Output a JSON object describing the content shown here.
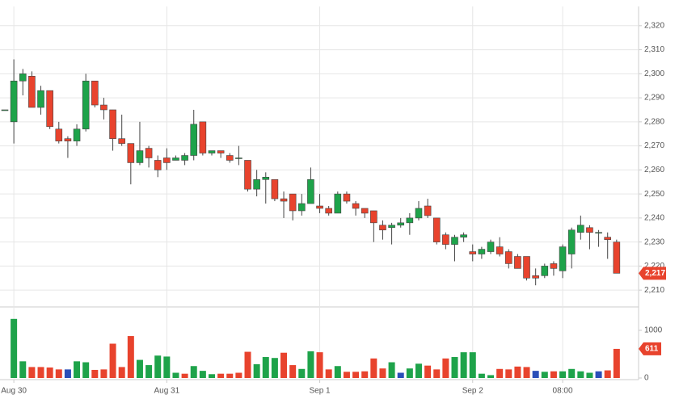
{
  "chart_data": {
    "type": "candlestick",
    "categories": [
      null,
      "Aug 30",
      null,
      null,
      null,
      null,
      null,
      null,
      null,
      null,
      null,
      null,
      null,
      null,
      null,
      null,
      null,
      null,
      "Aug 31",
      null,
      null,
      null,
      null,
      null,
      null,
      null,
      null,
      null,
      null,
      null,
      null,
      null,
      null,
      null,
      null,
      "Sep 1",
      null,
      null,
      null,
      null,
      null,
      null,
      null,
      null,
      null,
      null,
      null,
      null,
      null,
      null,
      null,
      null,
      "Sep 2",
      null,
      null,
      null,
      null,
      null,
      null,
      null,
      null,
      null,
      "08:00",
      null,
      null,
      null,
      null,
      null,
      null
    ],
    "open": [
      2285,
      2280,
      2297,
      2299,
      2286,
      2293,
      2277,
      2273,
      2272,
      2277,
      2297,
      2287,
      2285,
      2273,
      2271,
      2263,
      2269,
      2264,
      2265,
      2264,
      2264,
      2266,
      2280,
      2267,
      2268,
      2266,
      2265,
      2264,
      2252,
      2256,
      2256,
      2248,
      2250,
      2243,
      2246,
      2245,
      2244,
      2242,
      2250,
      2246,
      2244,
      2243,
      2237,
      2236,
      2237,
      2238,
      2240,
      2245,
      2240,
      2233,
      2229,
      2232,
      2226,
      2225,
      2226,
      2228,
      2226,
      2224,
      2224,
      2216,
      2216,
      2221,
      2218,
      2225,
      2234,
      2236,
      2234,
      2232,
      2230
    ],
    "high": [
      2285,
      2306,
      2302,
      2301,
      2295,
      2293,
      2280,
      2274,
      2279,
      2300,
      2297,
      2290,
      2285,
      2283,
      2271,
      2280,
      2270,
      2266,
      2269,
      2266,
      2267,
      2285,
      2280,
      2268,
      2268,
      2267,
      2270,
      2264,
      2260,
      2259,
      2256,
      2251,
      2250,
      2250,
      2261,
      2250,
      2245,
      2251,
      2251,
      2247,
      2244,
      2243,
      2239,
      2238,
      2240,
      2242,
      2247,
      2248,
      2240,
      2234,
      2233,
      2234,
      2229,
      2228,
      2231,
      2232,
      2227,
      2225,
      2224,
      2219,
      2221,
      2222,
      2229,
      2236,
      2241,
      2237,
      2235,
      2234,
      2231
    ],
    "low": [
      2285,
      2271,
      2291,
      2286,
      2283,
      2277,
      2271,
      2265,
      2270,
      2276,
      2286,
      2281,
      2268,
      2270,
      2254,
      2262,
      2261,
      2257,
      2260,
      2264,
      2262,
      2264,
      2266,
      2266,
      2265,
      2263,
      2262,
      2251,
      2249,
      2246,
      2247,
      2240,
      2239,
      2241,
      2246,
      2242,
      2241,
      2242,
      2246,
      2241,
      2240,
      2230,
      2231,
      2229,
      2236,
      2233,
      2239,
      2240,
      2229,
      2227,
      2222,
      2230,
      2222,
      2223,
      2225,
      2224,
      2219,
      2219,
      2214,
      2212,
      2215,
      2216,
      2215,
      2219,
      2231,
      2227,
      2228,
      2223,
      2217
    ],
    "close": [
      2285,
      2297,
      2300,
      2286,
      2293,
      2278,
      2272,
      2272,
      2277,
      2297,
      2287,
      2285,
      2273,
      2271,
      2263,
      2268,
      2265,
      2260,
      2263,
      2265,
      2266,
      2279,
      2267,
      2268,
      2267,
      2264,
      2265,
      2252,
      2256,
      2257,
      2248,
      2247,
      2243,
      2246,
      2256,
      2244,
      2242,
      2250,
      2247,
      2244,
      2242,
      2238,
      2235,
      2237,
      2238,
      2240,
      2244,
      2241,
      2230,
      2229,
      2232,
      2233,
      2225,
      2227,
      2230,
      2225,
      2221,
      2219,
      2215,
      2215,
      2220,
      2219,
      2228,
      2235,
      2237,
      2234,
      2234,
      2231,
      2217
    ],
    "up_color": "#1ea34a",
    "down_color": "#e8432d",
    "ylim": [
      2203,
      2328
    ],
    "yticks": [
      {
        "value": 2210,
        "label": "2,210"
      },
      {
        "value": 2220,
        "label": "2,220"
      },
      {
        "value": 2230,
        "label": "2,230"
      },
      {
        "value": 2240,
        "label": "2,240"
      },
      {
        "value": 2250,
        "label": "2,250"
      },
      {
        "value": 2260,
        "label": "2,260"
      },
      {
        "value": 2270,
        "label": "2,270"
      },
      {
        "value": 2280,
        "label": "2,280"
      },
      {
        "value": 2290,
        "label": "2,290"
      },
      {
        "value": 2300,
        "label": "2,300"
      },
      {
        "value": 2310,
        "label": "2,310"
      },
      {
        "value": 2320,
        "label": "2,320"
      }
    ],
    "last_label": "2,217",
    "grid": true,
    "volume": {
      "values": [
        null,
        1240,
        350,
        230,
        230,
        220,
        180,
        180,
        350,
        330,
        170,
        180,
        720,
        230,
        880,
        380,
        270,
        470,
        450,
        110,
        90,
        250,
        150,
        80,
        90,
        90,
        110,
        550,
        290,
        440,
        420,
        530,
        270,
        190,
        560,
        540,
        180,
        250,
        130,
        130,
        140,
        410,
        200,
        330,
        110,
        200,
        300,
        260,
        180,
        410,
        440,
        540,
        540,
        90,
        60,
        190,
        180,
        240,
        230,
        150,
        130,
        140,
        140,
        190,
        140,
        110,
        140,
        160,
        611
      ],
      "colors": [
        null,
        "#1ea34a",
        "#1ea34a",
        "#e8432d",
        "#e8432d",
        "#e8432d",
        "#e8432d",
        "#2a4eb8",
        "#1ea34a",
        "#1ea34a",
        "#e8432d",
        "#e8432d",
        "#e8432d",
        "#e8432d",
        "#e8432d",
        "#1ea34a",
        "#1ea34a",
        "#1ea34a",
        "#1ea34a",
        "#1ea34a",
        "#e8432d",
        "#1ea34a",
        "#1ea34a",
        "#1ea34a",
        "#e8432d",
        "#e8432d",
        "#e8432d",
        "#e8432d",
        "#1ea34a",
        "#1ea34a",
        "#1ea34a",
        "#e8432d",
        "#e8432d",
        "#1ea34a",
        "#1ea34a",
        "#e8432d",
        "#e8432d",
        "#1ea34a",
        "#e8432d",
        "#e8432d",
        "#e8432d",
        "#e8432d",
        "#e8432d",
        "#1ea34a",
        "#2a4eb8",
        "#1ea34a",
        "#1ea34a",
        "#e8432d",
        "#e8432d",
        "#e8432d",
        "#1ea34a",
        "#1ea34a",
        "#1ea34a",
        "#1ea34a",
        "#1ea34a",
        "#e8432d",
        "#e8432d",
        "#e8432d",
        "#e8432d",
        "#2a4eb8",
        "#1ea34a",
        "#e8432d",
        "#1ea34a",
        "#1ea34a",
        "#1ea34a",
        "#1ea34a",
        "#2a4eb8",
        "#e8432d",
        "#e8432d"
      ],
      "ylim": [
        -34,
        1491
      ],
      "yticks": [
        0,
        1000
      ]
    }
  }
}
